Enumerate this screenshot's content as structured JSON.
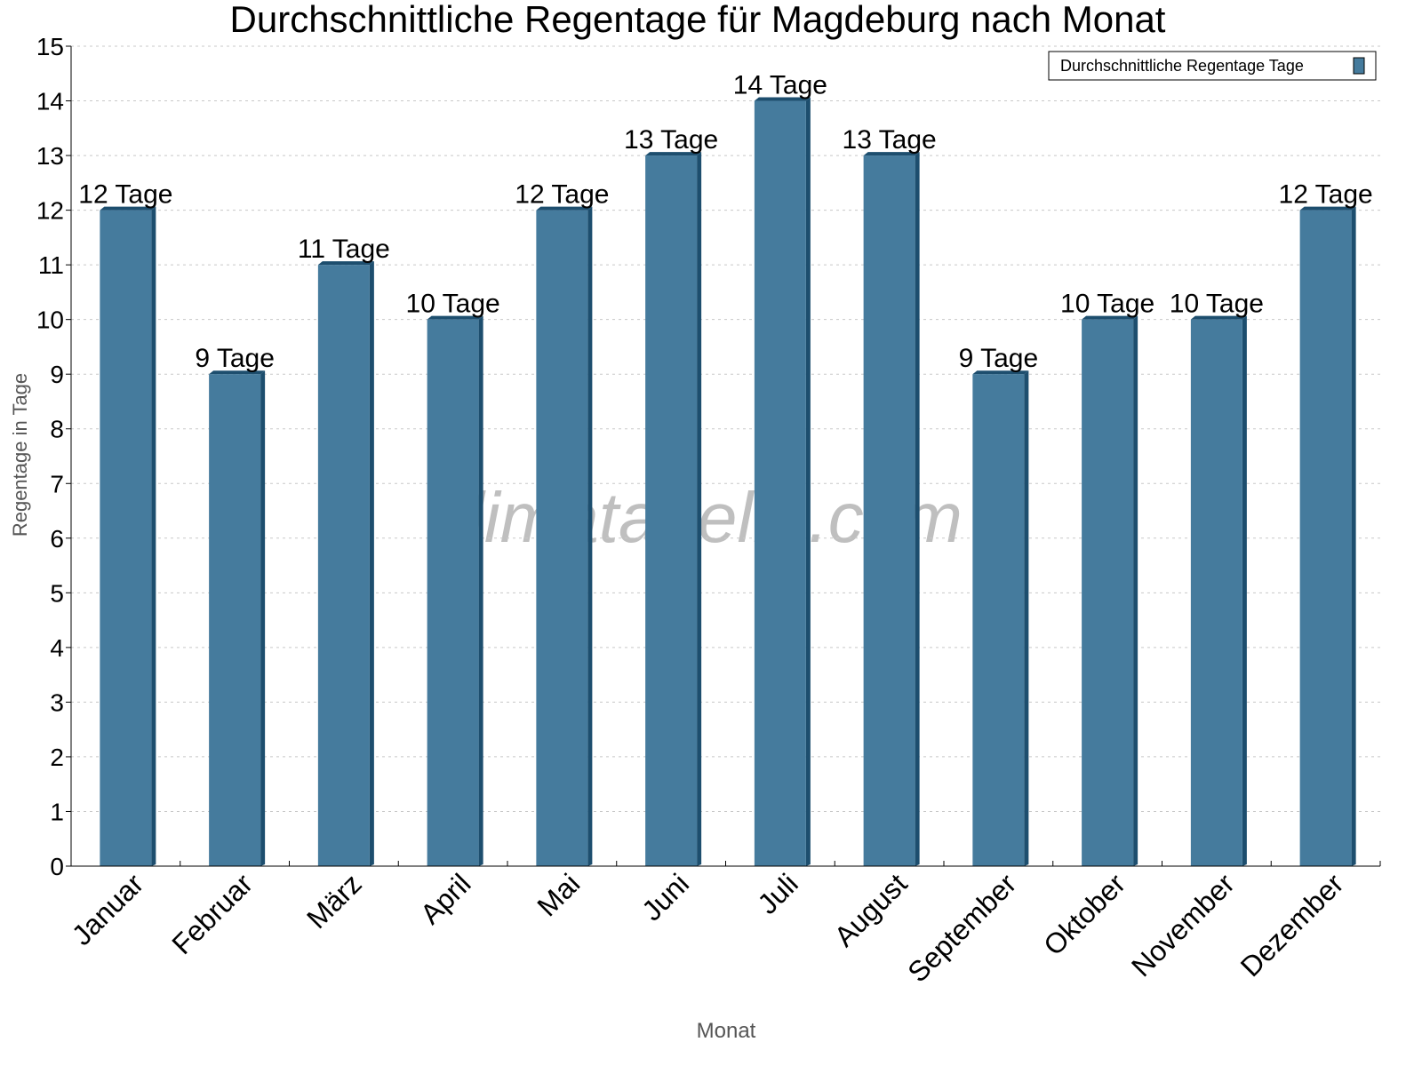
{
  "chart_data": {
    "type": "bar",
    "title": "Durchschnittliche Regentage für Magdeburg nach Monat",
    "xlabel": "Monat",
    "ylabel": "Regentage in Tage",
    "ylim": [
      0,
      15
    ],
    "yticks": [
      0,
      1,
      2,
      3,
      4,
      5,
      6,
      7,
      8,
      9,
      10,
      11,
      12,
      13,
      14,
      15
    ],
    "grid": true,
    "legend_placement": "top-right",
    "categories": [
      "Januar",
      "Februar",
      "März",
      "April",
      "Mai",
      "Juni",
      "Juli",
      "August",
      "September",
      "Oktober",
      "November",
      "Dezember"
    ],
    "series": [
      {
        "name": "Durchschnittliche Regentage Tage",
        "values": [
          12,
          9,
          11,
          10,
          12,
          13,
          14,
          13,
          9,
          10,
          10,
          12
        ]
      }
    ],
    "data_labels": [
      "12 Tage",
      "9 Tage",
      "11 Tage",
      "10 Tage",
      "12 Tage",
      "13 Tage",
      "14 Tage",
      "13 Tage",
      "9 Tage",
      "10 Tage",
      "10 Tage",
      "12 Tage"
    ],
    "watermark": "klimatabelle.com",
    "colors": {
      "bar": "#457b9d",
      "bar_side": "#1d4e6e",
      "grid": "#c8c8c8"
    }
  }
}
